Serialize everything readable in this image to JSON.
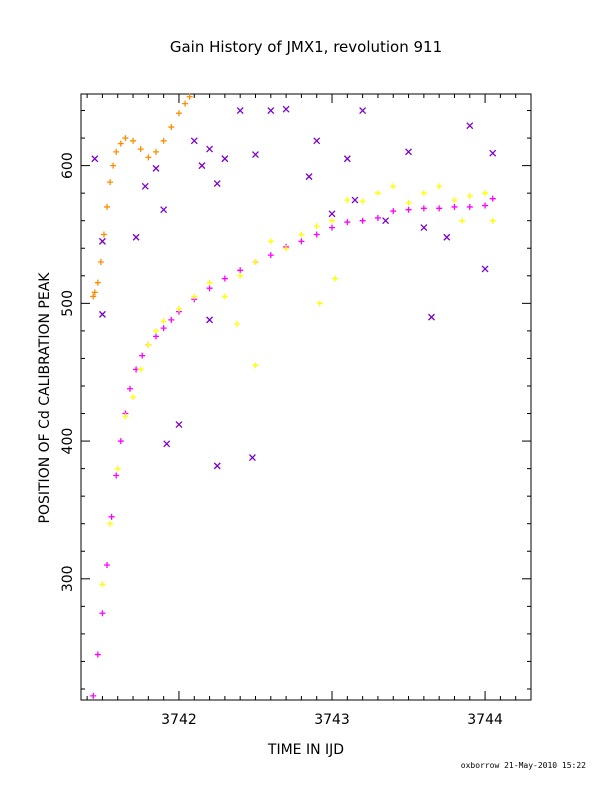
{
  "chart_data": {
    "type": "scatter",
    "title": "Gain History of JMX1, revolution 911",
    "xlabel": "TIME IN IJD",
    "ylabel": "POSITION OF Cd CALIBRATION PEAK",
    "xlim": [
      3741.36,
      3744.3
    ],
    "ylim": [
      212,
      652
    ],
    "xticks": [
      3742,
      3743,
      3744
    ],
    "yticks": [
      300,
      400,
      500,
      600
    ],
    "grid": false,
    "legend": "none",
    "colors": {
      "fit": "#ff00ff",
      "initial": "#ff8c00",
      "measured": "#ffff00",
      "outliers": "#7b00cc"
    },
    "series": [
      {
        "marker": "plus",
        "color": "#ff00ff",
        "x": [
          3741.44,
          3741.47,
          3741.5,
          3741.53,
          3741.56,
          3741.59,
          3741.62,
          3741.65,
          3741.68,
          3741.72,
          3741.76,
          3741.8,
          3741.85,
          3741.9,
          3741.95,
          3742.0,
          3742.1,
          3742.2,
          3742.3,
          3742.4,
          3742.5,
          3742.6,
          3742.7,
          3742.8,
          3742.9,
          3743.0,
          3743.1,
          3743.2,
          3743.3,
          3743.4,
          3743.5,
          3743.6,
          3743.7,
          3743.8,
          3743.9,
          3744.0,
          3744.05
        ],
        "y": [
          215,
          245,
          275,
          310,
          345,
          375,
          400,
          420,
          438,
          452,
          462,
          470,
          476,
          482,
          488,
          494,
          503,
          511,
          518,
          524,
          530,
          535,
          541,
          545,
          550,
          555,
          559,
          560,
          562,
          567,
          568,
          569,
          569,
          570,
          570,
          571,
          576
        ]
      },
      {
        "marker": "plus",
        "color": "#ff8c00",
        "x": [
          3741.44,
          3741.45,
          3741.47,
          3741.49,
          3741.51,
          3741.53,
          3741.55,
          3741.57,
          3741.59,
          3741.62,
          3741.65,
          3741.7,
          3741.75,
          3741.8,
          3741.85,
          3741.9,
          3741.95,
          3742.0,
          3742.04,
          3742.07
        ],
        "y": [
          505,
          508,
          515,
          530,
          550,
          570,
          588,
          600,
          610,
          616,
          620,
          618,
          612,
          606,
          610,
          618,
          628,
          638,
          645,
          650
        ]
      },
      {
        "marker": "plus",
        "color": "#ffff00",
        "x": [
          3741.5,
          3741.55,
          3741.6,
          3741.65,
          3741.7,
          3741.75,
          3741.8,
          3741.85,
          3741.9,
          3742.0,
          3742.1,
          3742.2,
          3742.3,
          3742.4,
          3742.5,
          3742.6,
          3742.7,
          3742.8,
          3742.9,
          3743.0,
          3743.1,
          3743.2,
          3743.3,
          3743.4,
          3743.5,
          3743.6,
          3743.7,
          3743.8,
          3743.9,
          3744.0,
          3744.05,
          3742.5,
          3742.92,
          3743.02,
          3742.38,
          3743.85
        ],
        "y": [
          296,
          340,
          380,
          418,
          432,
          452,
          470,
          480,
          487,
          496,
          505,
          515,
          505,
          520,
          530,
          545,
          540,
          550,
          556,
          560,
          575,
          574,
          580,
          585,
          573,
          580,
          585,
          575,
          578,
          580,
          560,
          455,
          500,
          518,
          485,
          560
        ]
      },
      {
        "marker": "cross",
        "color": "#7b00cc",
        "x": [
          3741.45,
          3741.5,
          3741.72,
          3741.78,
          3741.85,
          3741.9,
          3742.0,
          3742.1,
          3742.15,
          3742.2,
          3742.25,
          3742.3,
          3742.4,
          3742.5,
          3742.6,
          3742.7,
          3742.85,
          3742.9,
          3743.0,
          3743.1,
          3743.2,
          3743.35,
          3743.5,
          3743.6,
          3743.65,
          3743.75,
          3743.9,
          3744.0,
          3744.05,
          3742.25,
          3742.48,
          3741.92,
          3741.5,
          3742.2,
          3743.15
        ],
        "y": [
          605,
          545,
          548,
          585,
          598,
          568,
          412,
          618,
          600,
          612,
          587,
          605,
          640,
          608,
          640,
          641,
          592,
          618,
          565,
          605,
          640,
          560,
          610,
          555,
          490,
          548,
          629,
          525,
          609,
          382,
          388,
          398,
          492,
          488,
          575
        ]
      }
    ],
    "credit": "oxborrow 21-May-2010 15:22"
  }
}
